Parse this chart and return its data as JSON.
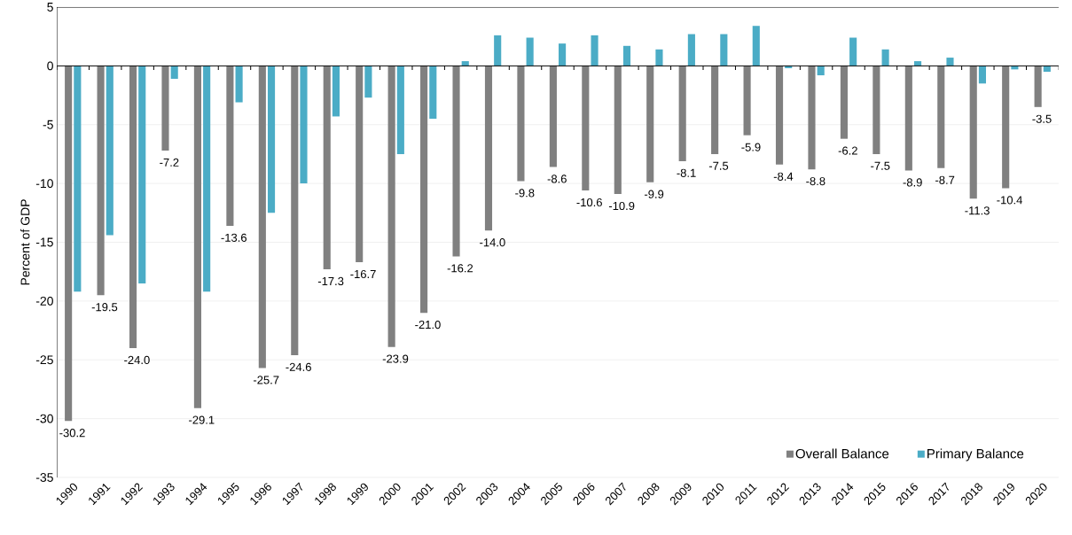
{
  "chart_data": {
    "type": "bar",
    "ylabel": "Percent of GDP",
    "categories": [
      "1990",
      "1991",
      "1992",
      "1993",
      "1994",
      "1995",
      "1996",
      "1997",
      "1998",
      "1999",
      "2000",
      "2001",
      "2002",
      "2003",
      "2004",
      "2005",
      "2006",
      "2007",
      "2008",
      "2009",
      "2010",
      "2011",
      "2012",
      "2013",
      "2014",
      "2015",
      "2016",
      "2017",
      "2018",
      "2019",
      "2020"
    ],
    "series": [
      {
        "name": "Overall Balance",
        "color": "#808080",
        "values": [
          -30.2,
          -19.5,
          -24.0,
          -7.2,
          -29.1,
          -13.6,
          -25.7,
          -24.6,
          -17.3,
          -16.7,
          -23.9,
          -21.0,
          -16.2,
          -14.0,
          -9.8,
          -8.6,
          -10.6,
          -10.9,
          -9.9,
          -8.1,
          -7.5,
          -5.9,
          -8.4,
          -8.8,
          -6.2,
          -7.5,
          -8.9,
          -8.7,
          -11.3,
          -10.4,
          -3.5
        ],
        "value_labels": [
          "-30.2",
          "-19.5",
          "-24.0",
          "-7.2",
          "-29.1",
          "-13.6",
          "-25.7",
          "-24.6",
          "-17.3",
          "-16.7",
          "-23.9",
          "-21.0",
          "-16.2",
          "-14.0",
          "-9.8",
          "-8.6",
          "-10.6",
          "-10.9",
          "-9.9",
          "-8.1",
          "-7.5",
          "-5.9",
          "-8.4",
          "-8.8",
          "-6.2",
          "-7.5",
          "-8.9",
          "-8.7",
          "-11.3",
          "-10.4",
          "-3.5"
        ]
      },
      {
        "name": "Primary Balance",
        "color": "#4bacc6",
        "values": [
          -19.2,
          -14.4,
          -18.5,
          -1.1,
          -19.2,
          -3.1,
          -12.5,
          -10.0,
          -4.3,
          -2.7,
          -7.5,
          -4.5,
          0.4,
          2.6,
          2.4,
          1.9,
          2.6,
          1.7,
          1.4,
          2.7,
          2.7,
          3.4,
          -0.2,
          -0.8,
          2.4,
          1.4,
          0.4,
          0.7,
          -1.5,
          -0.3,
          -0.5
        ]
      }
    ],
    "ylim": [
      -35,
      5
    ],
    "yticks": [
      -35,
      -30,
      -25,
      -20,
      -15,
      -10,
      -5,
      0,
      5
    ],
    "grid": "y",
    "legend": "bottom right"
  }
}
